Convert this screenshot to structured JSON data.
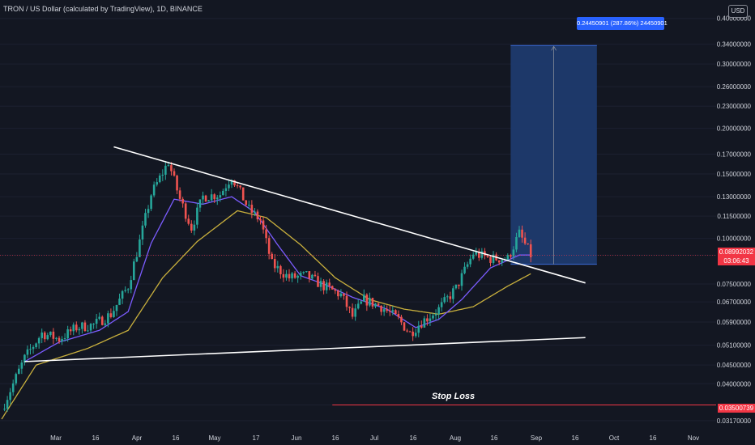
{
  "header": {
    "title": "TRON / US Dollar (calculated by TradingView), 1D, BINANCE",
    "currency_button": "USD"
  },
  "colors": {
    "background": "#131722",
    "up": "#26a69a",
    "down": "#ef5350",
    "ma_fast": "#7b5cff",
    "ma_slow": "#c9b03d",
    "trendline": "#ffffff",
    "target_box": "#1e3a6e",
    "accent": "#2962ff",
    "stop_loss": "#f23645"
  },
  "price_tags": {
    "current_price": "0.08992032",
    "countdown": "03:06:43",
    "stop_loss": "0.03500739"
  },
  "annotations": {
    "measure_label": "0.24450901 (287.86%) 24450901",
    "stop_loss_text": "Stop Loss"
  },
  "chart_data": {
    "type": "candlestick",
    "title": "TRON / US Dollar (calculated by TradingView), 1D, BINANCE",
    "y_scale": "log",
    "ylim": [
      0.0295,
      0.44
    ],
    "y_ticks": [
      "0.40000000",
      "0.34000000",
      "0.30000000",
      "0.26000000",
      "0.23000000",
      "0.20000000",
      "0.17000000",
      "0.15000000",
      "0.13000000",
      "0.11500000",
      "0.10000000",
      "0.08992032",
      "0.07500000",
      "0.06700000",
      "0.05900000",
      "0.05100000",
      "0.04500000",
      "0.04000000",
      "0.03500739",
      "0.03170000"
    ],
    "y_tick_values": [
      0.4,
      0.34,
      0.3,
      0.26,
      0.23,
      0.2,
      0.17,
      0.15,
      0.13,
      0.115,
      0.1,
      0.08992,
      0.075,
      0.067,
      0.059,
      0.051,
      0.045,
      0.04,
      0.035,
      0.0317
    ],
    "x_ticks": [
      "Mar",
      "16",
      "Apr",
      "16",
      "May",
      "17",
      "Jun",
      "16",
      "Jul",
      "16",
      "Aug",
      "16",
      "Sep",
      "16",
      "Oct",
      "16",
      "Nov"
    ],
    "close_series_keypoints": [
      {
        "day": 0,
        "close": 0.034
      },
      {
        "day": 8,
        "close": 0.047
      },
      {
        "day": 14,
        "close": 0.055
      },
      {
        "day": 20,
        "close": 0.053
      },
      {
        "day": 26,
        "close": 0.057
      },
      {
        "day": 32,
        "close": 0.058
      },
      {
        "day": 38,
        "close": 0.062
      },
      {
        "day": 44,
        "close": 0.074
      },
      {
        "day": 48,
        "close": 0.098
      },
      {
        "day": 52,
        "close": 0.132
      },
      {
        "day": 58,
        "close": 0.162
      },
      {
        "day": 62,
        "close": 0.128
      },
      {
        "day": 66,
        "close": 0.107
      },
      {
        "day": 70,
        "close": 0.13
      },
      {
        "day": 76,
        "close": 0.132
      },
      {
        "day": 80,
        "close": 0.148
      },
      {
        "day": 86,
        "close": 0.12
      },
      {
        "day": 90,
        "close": 0.112
      },
      {
        "day": 94,
        "close": 0.085
      },
      {
        "day": 100,
        "close": 0.078
      },
      {
        "day": 106,
        "close": 0.079
      },
      {
        "day": 112,
        "close": 0.074
      },
      {
        "day": 118,
        "close": 0.07
      },
      {
        "day": 122,
        "close": 0.061
      },
      {
        "day": 126,
        "close": 0.068
      },
      {
        "day": 132,
        "close": 0.065
      },
      {
        "day": 138,
        "close": 0.06
      },
      {
        "day": 142,
        "close": 0.055
      },
      {
        "day": 146,
        "close": 0.059
      },
      {
        "day": 152,
        "close": 0.064
      },
      {
        "day": 158,
        "close": 0.073
      },
      {
        "day": 164,
        "close": 0.091
      },
      {
        "day": 170,
        "close": 0.088
      },
      {
        "day": 176,
        "close": 0.088
      },
      {
        "day": 180,
        "close": 0.103
      },
      {
        "day": 184,
        "close": 0.09
      }
    ],
    "ma_fast_keypoints": [
      {
        "day": 8,
        "value": 0.046
      },
      {
        "day": 20,
        "value": 0.052
      },
      {
        "day": 34,
        "value": 0.056
      },
      {
        "day": 44,
        "value": 0.063
      },
      {
        "day": 52,
        "value": 0.097
      },
      {
        "day": 60,
        "value": 0.128
      },
      {
        "day": 70,
        "value": 0.124
      },
      {
        "day": 80,
        "value": 0.13
      },
      {
        "day": 88,
        "value": 0.118
      },
      {
        "day": 96,
        "value": 0.096
      },
      {
        "day": 104,
        "value": 0.079
      },
      {
        "day": 112,
        "value": 0.075
      },
      {
        "day": 122,
        "value": 0.069
      },
      {
        "day": 134,
        "value": 0.064
      },
      {
        "day": 144,
        "value": 0.057
      },
      {
        "day": 152,
        "value": 0.06
      },
      {
        "day": 160,
        "value": 0.068
      },
      {
        "day": 170,
        "value": 0.083
      },
      {
        "day": 180,
        "value": 0.09
      },
      {
        "day": 184,
        "value": 0.09
      }
    ],
    "ma_slow_keypoints": [
      {
        "day": 0,
        "value": 0.032
      },
      {
        "day": 12,
        "value": 0.045
      },
      {
        "day": 30,
        "value": 0.05
      },
      {
        "day": 44,
        "value": 0.056
      },
      {
        "day": 56,
        "value": 0.078
      },
      {
        "day": 68,
        "value": 0.098
      },
      {
        "day": 82,
        "value": 0.119
      },
      {
        "day": 92,
        "value": 0.114
      },
      {
        "day": 104,
        "value": 0.096
      },
      {
        "day": 116,
        "value": 0.078
      },
      {
        "day": 128,
        "value": 0.068
      },
      {
        "day": 140,
        "value": 0.064
      },
      {
        "day": 152,
        "value": 0.062
      },
      {
        "day": 164,
        "value": 0.065
      },
      {
        "day": 176,
        "value": 0.074
      },
      {
        "day": 184,
        "value": 0.08
      }
    ],
    "trendlines": [
      {
        "name": "resistance",
        "from": {
          "day": 39,
          "price": 0.178
        },
        "to": {
          "day": 203,
          "price": 0.0755
        }
      },
      {
        "name": "support",
        "from": {
          "day": 8,
          "price": 0.046
        },
        "to": {
          "day": 203,
          "price": 0.0535
        }
      }
    ],
    "target_box": {
      "from_day": 177,
      "to_day": 207,
      "low": 0.0849,
      "high": 0.337
    },
    "stop_loss_line": {
      "from_day": 115,
      "price": 0.035
    }
  }
}
